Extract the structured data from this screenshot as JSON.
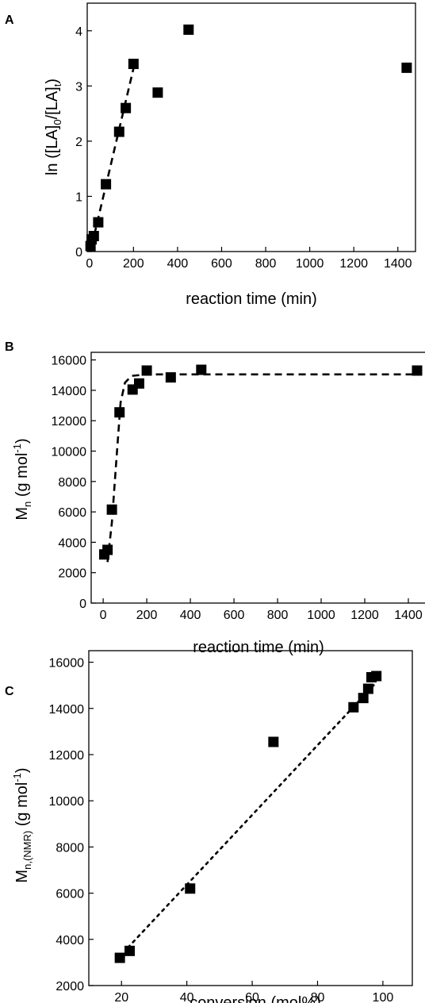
{
  "chart_data": [
    {
      "panel_label": "A",
      "type": "scatter",
      "xlabel": "reaction time (min)",
      "ylabel": "ln ([LA]0/[LA]t)",
      "xlim": [
        -10,
        1480
      ],
      "ylim": [
        0,
        4.5
      ],
      "xticks": [
        0,
        200,
        400,
        600,
        800,
        1000,
        1200,
        1400
      ],
      "yticks": [
        0,
        1,
        2,
        3,
        4
      ],
      "marker_color": "#000000",
      "points": [
        {
          "x": 5,
          "y": 0.1
        },
        {
          "x": 10,
          "y": 0.22
        },
        {
          "x": 20,
          "y": 0.28
        },
        {
          "x": 40,
          "y": 0.53
        },
        {
          "x": 75,
          "y": 1.22
        },
        {
          "x": 135,
          "y": 2.17
        },
        {
          "x": 165,
          "y": 2.6
        },
        {
          "x": 200,
          "y": 3.4
        },
        {
          "x": 310,
          "y": 2.88
        },
        {
          "x": 450,
          "y": 4.02
        },
        {
          "x": 1440,
          "y": 3.33
        }
      ],
      "fit": {
        "style": "dashed",
        "points": [
          {
            "x": 10,
            "y": 0.1
          },
          {
            "x": 205,
            "y": 3.4
          }
        ]
      }
    },
    {
      "panel_label": "B",
      "type": "scatter",
      "xlabel": "reaction time (min)",
      "ylabel": "Mn (g mol-1)",
      "xlim": [
        -55,
        1480
      ],
      "ylim": [
        0,
        16500
      ],
      "xticks": [
        0,
        200,
        400,
        600,
        800,
        1000,
        1200,
        1400
      ],
      "yticks": [
        0,
        2000,
        4000,
        6000,
        8000,
        10000,
        12000,
        14000,
        16000
      ],
      "marker_color": "#000000",
      "points": [
        {
          "x": 5,
          "y": 3200
        },
        {
          "x": 20,
          "y": 3500
        },
        {
          "x": 40,
          "y": 6150
        },
        {
          "x": 75,
          "y": 12550
        },
        {
          "x": 135,
          "y": 14050
        },
        {
          "x": 165,
          "y": 14450
        },
        {
          "x": 200,
          "y": 15300
        },
        {
          "x": 310,
          "y": 14850
        },
        {
          "x": 450,
          "y": 15350
        },
        {
          "x": 1440,
          "y": 15300
        }
      ],
      "fit": {
        "style": "dashed",
        "points": [
          {
            "x": 20,
            "y": 2700
          },
          {
            "x": 40,
            "y": 5300
          },
          {
            "x": 60,
            "y": 9300
          },
          {
            "x": 80,
            "y": 13200
          },
          {
            "x": 100,
            "y": 14500
          },
          {
            "x": 130,
            "y": 14950
          },
          {
            "x": 200,
            "y": 15050
          },
          {
            "x": 1440,
            "y": 15050
          }
        ]
      }
    },
    {
      "panel_label": "C",
      "type": "scatter",
      "xlabel": "conversion (mol%)",
      "ylabel": "Mn,(NMR) (g mol-1)",
      "xlim": [
        10,
        109
      ],
      "ylim": [
        2000,
        16500
      ],
      "xticks": [
        20,
        40,
        60,
        80,
        100
      ],
      "yticks": [
        2000,
        4000,
        6000,
        8000,
        10000,
        12000,
        14000,
        16000
      ],
      "marker_color": "#000000",
      "points": [
        {
          "x": 19.5,
          "y": 3200
        },
        {
          "x": 22.5,
          "y": 3500
        },
        {
          "x": 41,
          "y": 6200
        },
        {
          "x": 66.5,
          "y": 12550
        },
        {
          "x": 91,
          "y": 14050
        },
        {
          "x": 94,
          "y": 14450
        },
        {
          "x": 95.5,
          "y": 14850
        },
        {
          "x": 96.5,
          "y": 15350
        },
        {
          "x": 98,
          "y": 15400
        }
      ],
      "fit": {
        "style": "dotted",
        "points": [
          {
            "x": 22,
            "y": 3650
          },
          {
            "x": 97.5,
            "y": 15050
          }
        ]
      }
    }
  ]
}
